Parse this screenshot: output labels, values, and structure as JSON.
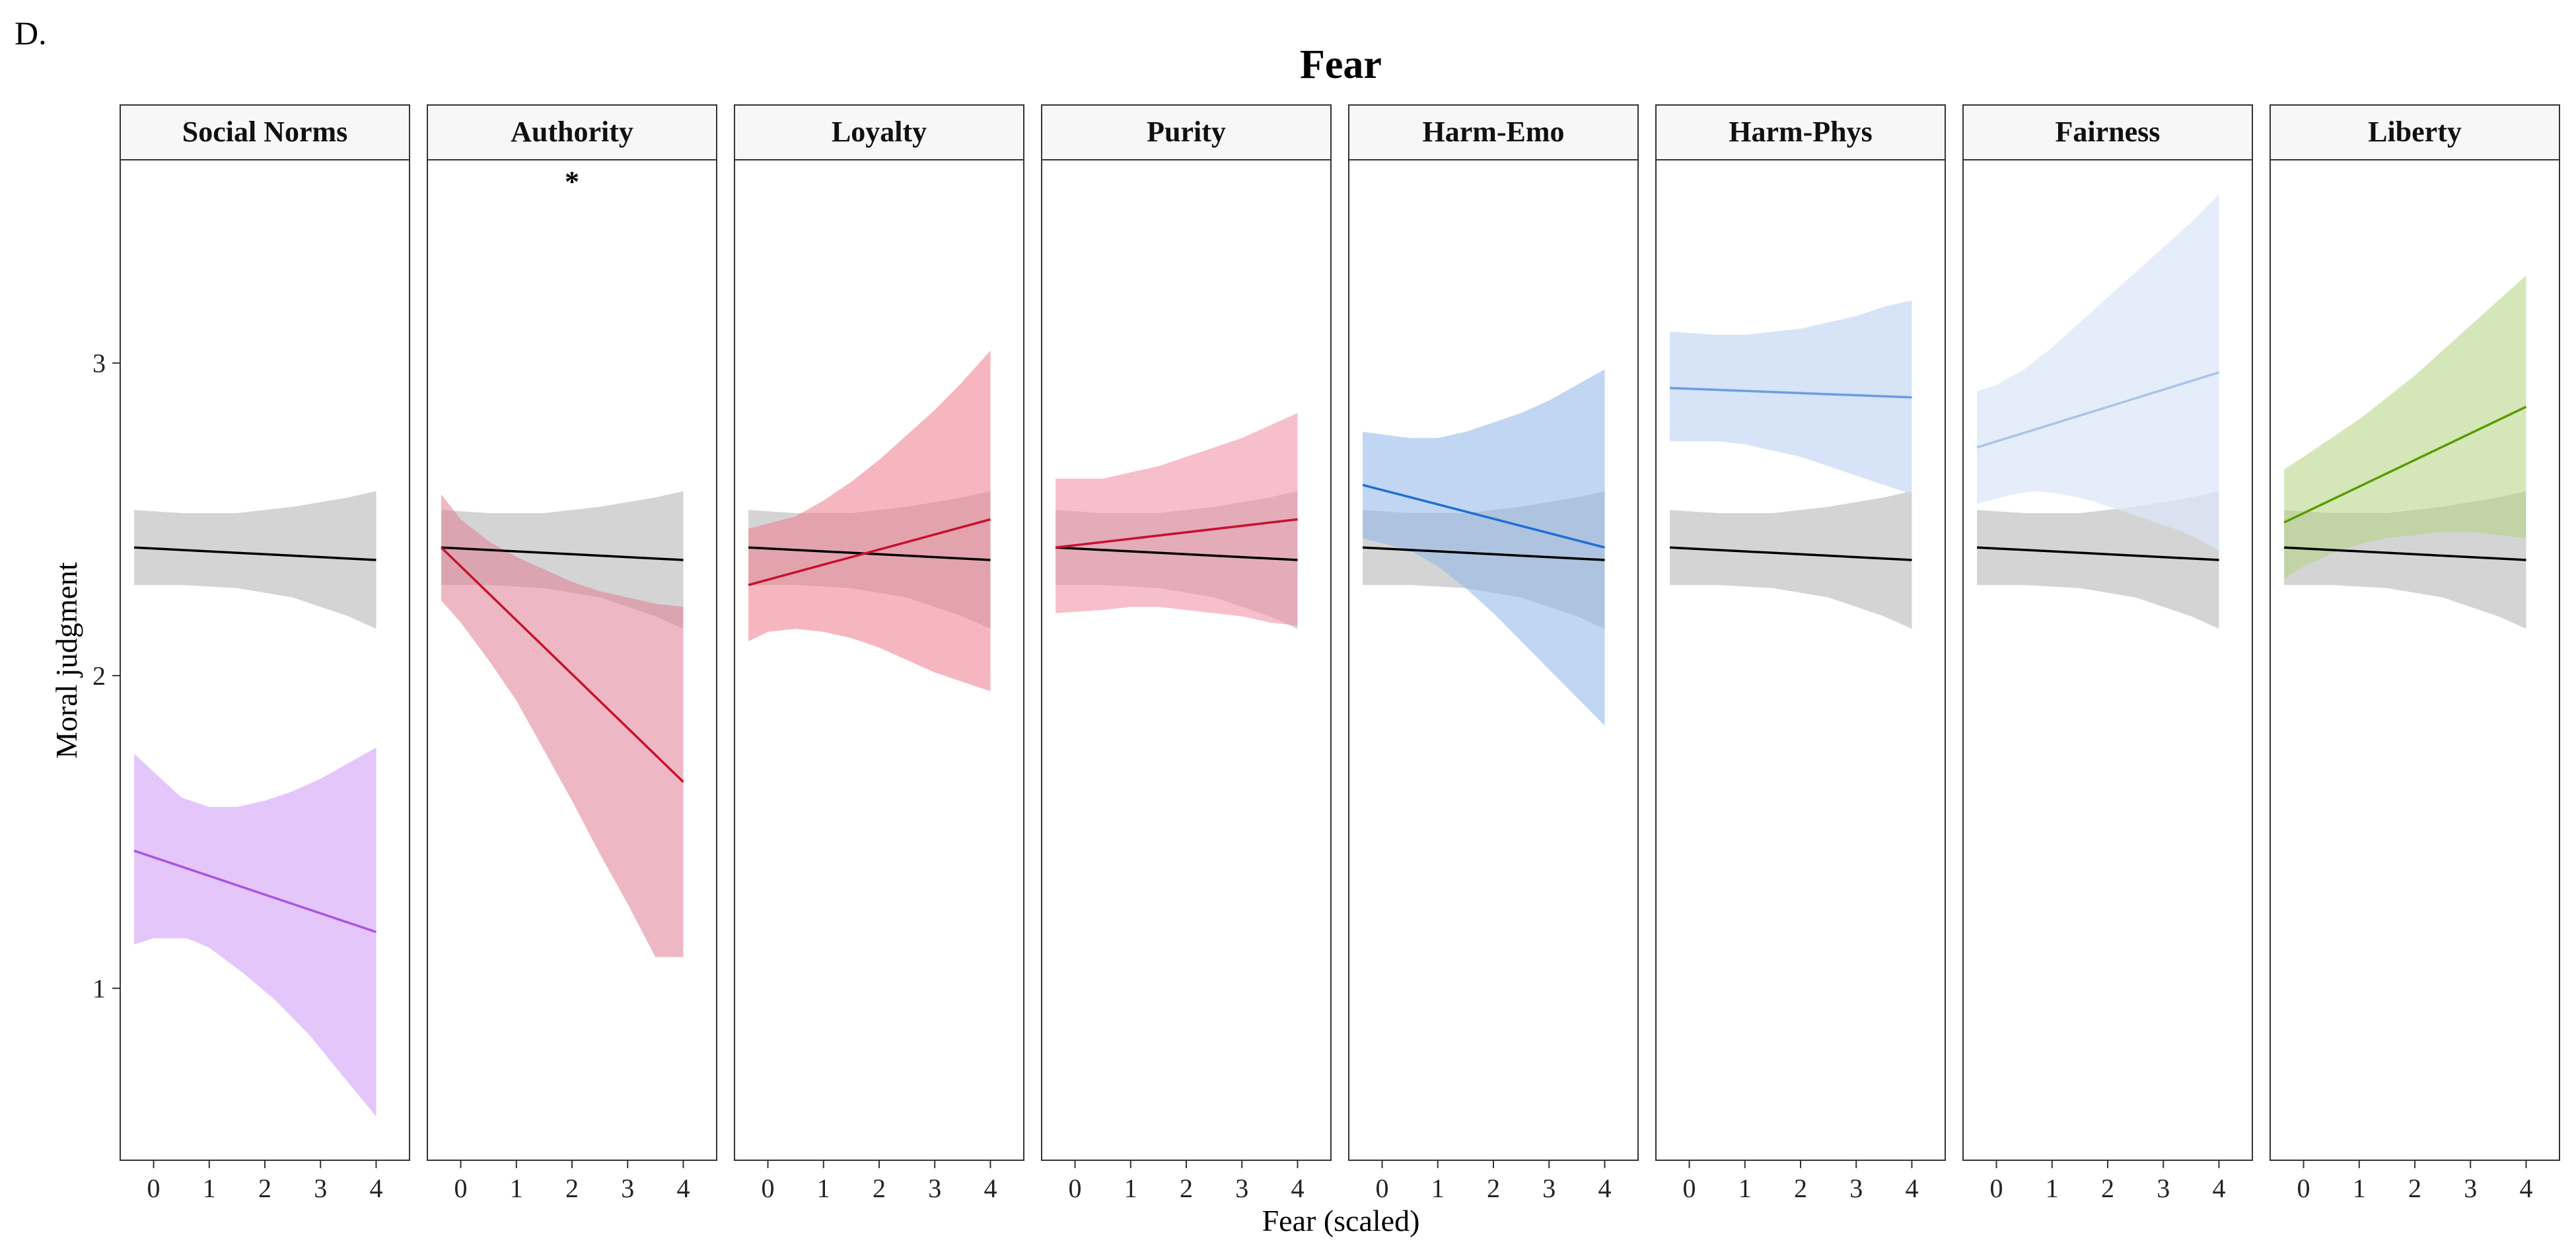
{
  "chart_data": {
    "type": "line",
    "panel_label": "D.",
    "title": "Fear",
    "xlabel": "Fear (scaled)",
    "ylabel": "Moral judgment",
    "xlim": [
      -0.6,
      4.6
    ],
    "ylim": [
      0.45,
      3.65
    ],
    "x_ticks": [
      0,
      1,
      2,
      3,
      4
    ],
    "y_ticks": [
      1,
      2,
      3
    ],
    "reference_series": {
      "color": "#000000",
      "band_color": "#bdbdbd",
      "line": [
        [
          -0.35,
          2.41
        ],
        [
          4.0,
          2.37
        ]
      ],
      "upper": [
        [
          -0.35,
          2.53
        ],
        [
          0.5,
          2.52
        ],
        [
          1.5,
          2.52
        ],
        [
          2.5,
          2.54
        ],
        [
          3.5,
          2.57
        ],
        [
          4.0,
          2.59
        ]
      ],
      "lower": [
        [
          -0.35,
          2.29
        ],
        [
          0.5,
          2.29
        ],
        [
          1.5,
          2.28
        ],
        [
          2.5,
          2.25
        ],
        [
          3.5,
          2.19
        ],
        [
          4.0,
          2.15
        ]
      ]
    },
    "panels": [
      {
        "name": "Social Norms",
        "significance": "",
        "color": "#a855e0",
        "band_color": "#e4c6fb",
        "band_opacity": 1.0,
        "line": [
          [
            -0.35,
            1.44
          ],
          [
            4.0,
            1.18
          ]
        ],
        "upper": [
          [
            -0.35,
            1.75
          ],
          [
            0.5,
            1.61
          ],
          [
            1.0,
            1.58
          ],
          [
            1.5,
            1.58
          ],
          [
            2.0,
            1.6
          ],
          [
            2.5,
            1.63
          ],
          [
            3.0,
            1.67
          ],
          [
            3.5,
            1.72
          ],
          [
            4.0,
            1.77
          ]
        ],
        "lower": [
          [
            -0.35,
            1.14
          ],
          [
            0.0,
            1.16
          ],
          [
            0.6,
            1.16
          ],
          [
            1.0,
            1.13
          ],
          [
            1.6,
            1.05
          ],
          [
            2.2,
            0.96
          ],
          [
            2.8,
            0.85
          ],
          [
            3.4,
            0.72
          ],
          [
            4.0,
            0.59
          ]
        ]
      },
      {
        "name": "Authority",
        "significance": "*",
        "color": "#c8102e",
        "band_color": "#de7e94",
        "band_opacity": 0.55,
        "line": [
          [
            -0.35,
            2.41
          ],
          [
            4.0,
            1.66
          ]
        ],
        "upper": [
          [
            -0.35,
            2.58
          ],
          [
            0.0,
            2.5
          ],
          [
            0.5,
            2.43
          ],
          [
            1.0,
            2.38
          ],
          [
            1.5,
            2.34
          ],
          [
            2.0,
            2.3
          ],
          [
            2.5,
            2.27
          ],
          [
            3.0,
            2.25
          ],
          [
            3.5,
            2.23
          ],
          [
            4.0,
            2.22
          ]
        ],
        "lower": [
          [
            -0.35,
            2.24
          ],
          [
            0.0,
            2.17
          ],
          [
            0.5,
            2.05
          ],
          [
            1.0,
            1.92
          ],
          [
            1.5,
            1.76
          ],
          [
            2.0,
            1.6
          ],
          [
            2.5,
            1.43
          ],
          [
            3.0,
            1.27
          ],
          [
            3.5,
            1.1
          ],
          [
            4.0,
            1.1
          ]
        ]
      },
      {
        "name": "Loyalty",
        "significance": "",
        "color": "#c8102e",
        "band_color": "#ee7a8c",
        "band_opacity": 0.55,
        "line": [
          [
            -0.35,
            2.29
          ],
          [
            4.0,
            2.5
          ]
        ],
        "upper": [
          [
            -0.35,
            2.47
          ],
          [
            0.5,
            2.51
          ],
          [
            1.0,
            2.56
          ],
          [
            1.5,
            2.62
          ],
          [
            2.0,
            2.69
          ],
          [
            2.5,
            2.77
          ],
          [
            3.0,
            2.85
          ],
          [
            3.5,
            2.94
          ],
          [
            4.0,
            3.04
          ]
        ],
        "lower": [
          [
            -0.35,
            2.11
          ],
          [
            0.0,
            2.14
          ],
          [
            0.5,
            2.15
          ],
          [
            1.0,
            2.14
          ],
          [
            1.5,
            2.12
          ],
          [
            2.0,
            2.09
          ],
          [
            2.5,
            2.05
          ],
          [
            3.0,
            2.01
          ],
          [
            3.5,
            1.98
          ],
          [
            4.0,
            1.95
          ]
        ]
      },
      {
        "name": "Purity",
        "significance": "",
        "color": "#c8102e",
        "band_color": "#f08aa0",
        "band_opacity": 0.55,
        "line": [
          [
            -0.35,
            2.41
          ],
          [
            4.0,
            2.5
          ]
        ],
        "upper": [
          [
            -0.35,
            2.63
          ],
          [
            0.5,
            2.63
          ],
          [
            1.0,
            2.65
          ],
          [
            1.5,
            2.67
          ],
          [
            2.0,
            2.7
          ],
          [
            2.5,
            2.73
          ],
          [
            3.0,
            2.76
          ],
          [
            3.5,
            2.8
          ],
          [
            4.0,
            2.84
          ]
        ],
        "lower": [
          [
            -0.35,
            2.2
          ],
          [
            0.5,
            2.21
          ],
          [
            1.0,
            2.22
          ],
          [
            1.5,
            2.22
          ],
          [
            2.0,
            2.21
          ],
          [
            2.5,
            2.2
          ],
          [
            3.0,
            2.19
          ],
          [
            3.5,
            2.17
          ],
          [
            4.0,
            2.16
          ]
        ]
      },
      {
        "name": "Harm-Emo",
        "significance": "",
        "color": "#1f6fd1",
        "band_color": "#8cb5e8",
        "band_opacity": 0.55,
        "line": [
          [
            -0.35,
            2.61
          ],
          [
            4.0,
            2.41
          ]
        ],
        "upper": [
          [
            -0.35,
            2.78
          ],
          [
            0.5,
            2.76
          ],
          [
            1.0,
            2.76
          ],
          [
            1.5,
            2.78
          ],
          [
            2.0,
            2.81
          ],
          [
            2.5,
            2.84
          ],
          [
            3.0,
            2.88
          ],
          [
            3.5,
            2.93
          ],
          [
            4.0,
            2.98
          ]
        ],
        "lower": [
          [
            -0.35,
            2.44
          ],
          [
            0.5,
            2.4
          ],
          [
            1.0,
            2.35
          ],
          [
            1.5,
            2.28
          ],
          [
            2.0,
            2.2
          ],
          [
            2.5,
            2.11
          ],
          [
            3.0,
            2.02
          ],
          [
            3.5,
            1.93
          ],
          [
            4.0,
            1.84
          ]
        ]
      },
      {
        "name": "Harm-Phys",
        "significance": "",
        "color": "#6b9de0",
        "band_color": "#c9daf3",
        "band_opacity": 0.75,
        "line": [
          [
            -0.35,
            2.92
          ],
          [
            4.0,
            2.89
          ]
        ],
        "upper": [
          [
            -0.35,
            3.1
          ],
          [
            0.5,
            3.09
          ],
          [
            1.0,
            3.09
          ],
          [
            1.5,
            3.1
          ],
          [
            2.0,
            3.11
          ],
          [
            2.5,
            3.13
          ],
          [
            3.0,
            3.15
          ],
          [
            3.5,
            3.18
          ],
          [
            4.0,
            3.2
          ]
        ],
        "lower": [
          [
            -0.35,
            2.75
          ],
          [
            0.5,
            2.75
          ],
          [
            1.0,
            2.74
          ],
          [
            1.5,
            2.72
          ],
          [
            2.0,
            2.7
          ],
          [
            2.5,
            2.67
          ],
          [
            3.0,
            2.64
          ],
          [
            3.5,
            2.61
          ],
          [
            4.0,
            2.58
          ]
        ]
      },
      {
        "name": "Fairness",
        "significance": "",
        "color": "#a9c4ea",
        "band_color": "#dde7f8",
        "band_opacity": 0.75,
        "line": [
          [
            -0.35,
            2.73
          ],
          [
            4.0,
            2.97
          ]
        ],
        "upper": [
          [
            -0.35,
            2.91
          ],
          [
            0.0,
            2.93
          ],
          [
            0.5,
            2.98
          ],
          [
            1.0,
            3.05
          ],
          [
            1.5,
            3.13
          ],
          [
            2.0,
            3.21
          ],
          [
            2.5,
            3.29
          ],
          [
            3.0,
            3.37
          ],
          [
            3.5,
            3.45
          ],
          [
            4.0,
            3.54
          ]
        ],
        "lower": [
          [
            -0.35,
            2.55
          ],
          [
            0.3,
            2.58
          ],
          [
            0.7,
            2.59
          ],
          [
            1.2,
            2.58
          ],
          [
            1.7,
            2.56
          ],
          [
            2.2,
            2.53
          ],
          [
            2.7,
            2.5
          ],
          [
            3.2,
            2.47
          ],
          [
            3.6,
            2.44
          ],
          [
            4.0,
            2.4
          ]
        ]
      },
      {
        "name": "Liberty",
        "significance": "",
        "color": "#5a9b00",
        "band_color": "#b3d47e",
        "band_opacity": 0.55,
        "line": [
          [
            -0.35,
            2.49
          ],
          [
            4.0,
            2.86
          ]
        ],
        "upper": [
          [
            -0.35,
            2.66
          ],
          [
            0.0,
            2.7
          ],
          [
            0.5,
            2.76
          ],
          [
            1.0,
            2.82
          ],
          [
            1.5,
            2.89
          ],
          [
            2.0,
            2.96
          ],
          [
            2.5,
            3.04
          ],
          [
            3.0,
            3.12
          ],
          [
            3.5,
            3.2
          ],
          [
            4.0,
            3.28
          ]
        ],
        "lower": [
          [
            -0.35,
            2.31
          ],
          [
            0.0,
            2.35
          ],
          [
            0.5,
            2.39
          ],
          [
            1.0,
            2.42
          ],
          [
            1.5,
            2.44
          ],
          [
            2.0,
            2.45
          ],
          [
            2.5,
            2.46
          ],
          [
            3.0,
            2.46
          ],
          [
            3.5,
            2.45
          ],
          [
            4.0,
            2.44
          ]
        ]
      }
    ]
  }
}
